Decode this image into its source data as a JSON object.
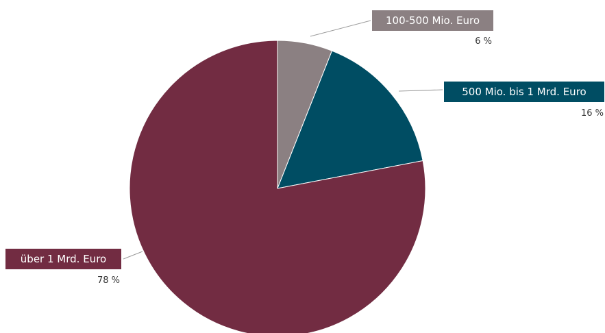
{
  "chart_data": {
    "type": "pie",
    "title": "",
    "slices": [
      {
        "label": "100-500 Mio. Euro",
        "value": 6,
        "value_label": "6 %",
        "color": "#8b8082"
      },
      {
        "label": "500 Mio. bis 1 Mrd. Euro",
        "value": 16,
        "value_label": "16 %",
        "color": "#004d63"
      },
      {
        "label": "über 1 Mrd. Euro",
        "value": 78,
        "value_label": "78 %",
        "color": "#722c42"
      }
    ],
    "start_angle": "12 o'clock",
    "direction": "clockwise"
  }
}
